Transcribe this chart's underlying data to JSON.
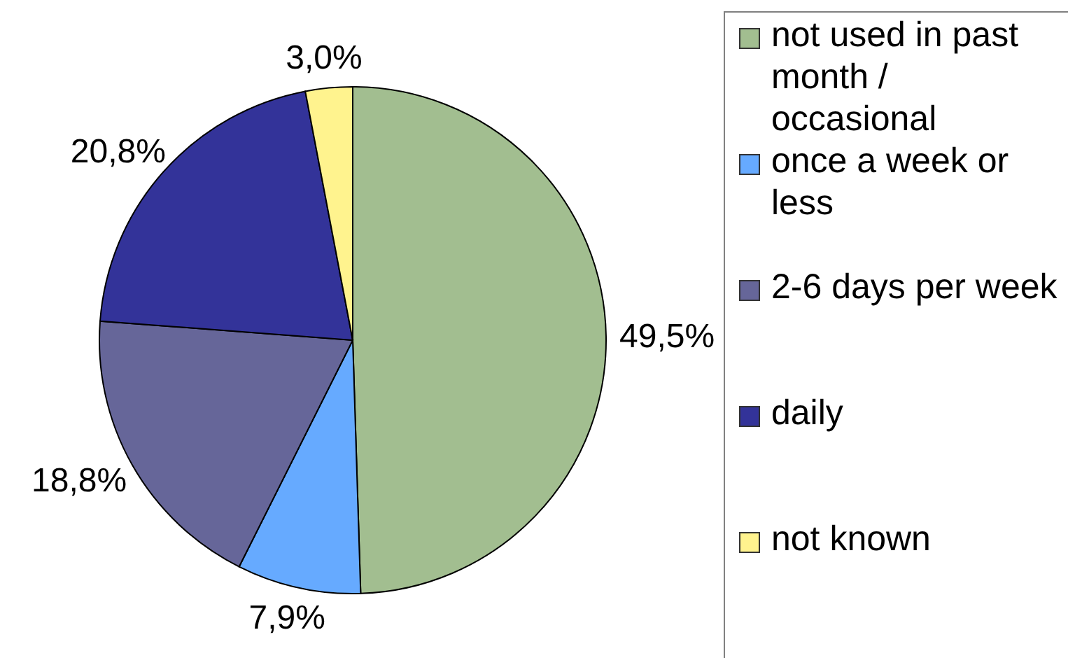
{
  "chart_data": {
    "type": "pie",
    "categories": [
      "not used in past month / occasional",
      "once a week or less",
      "2-6 days per week",
      "daily",
      "not known"
    ],
    "values": [
      49.5,
      7.9,
      18.8,
      20.8,
      3.0
    ],
    "colors": [
      "#a2be90",
      "#66aaff",
      "#666699",
      "#333399",
      "#fff38e"
    ],
    "value_labels": [
      "49,5%",
      "7,9%",
      "18,8%",
      "20,8%",
      "3,0%"
    ],
    "legend": "right"
  }
}
